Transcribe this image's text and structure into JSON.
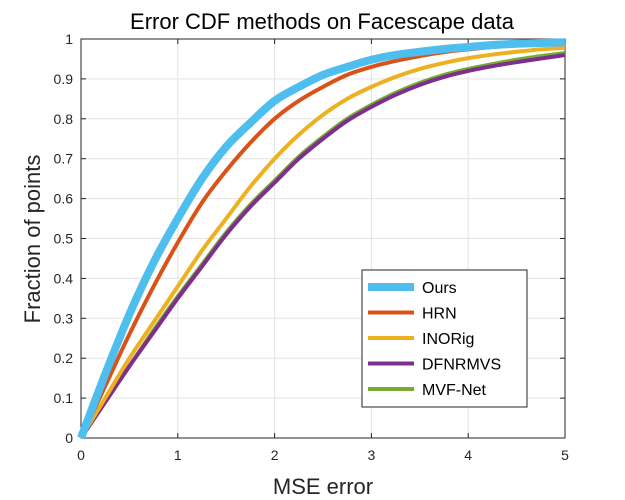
{
  "chart_data": {
    "type": "line",
    "title": "Error CDF methods on Facescape data",
    "xlabel": "MSE error",
    "ylabel": "Fraction of points",
    "xlim": [
      0,
      5
    ],
    "ylim": [
      0,
      1
    ],
    "xticks": [
      0,
      1,
      2,
      3,
      4,
      5
    ],
    "yticks": [
      0,
      0.1,
      0.2,
      0.3,
      0.4,
      0.5,
      0.6,
      0.7,
      0.8,
      0.9,
      1
    ],
    "grid": true,
    "legend_position": "bottom-right",
    "x": [
      0,
      0.25,
      0.5,
      0.75,
      1,
      1.25,
      1.5,
      1.75,
      2,
      2.25,
      2.5,
      2.75,
      3,
      3.25,
      3.5,
      3.75,
      4,
      4.25,
      4.5,
      4.75,
      5
    ],
    "series": [
      {
        "name": "Ours",
        "color": "#4DBEEE",
        "values": [
          0,
          0.16,
          0.31,
          0.44,
          0.55,
          0.65,
          0.73,
          0.79,
          0.845,
          0.88,
          0.91,
          0.93,
          0.948,
          0.96,
          0.968,
          0.975,
          0.98,
          0.985,
          0.988,
          0.99,
          0.992
        ]
      },
      {
        "name": "HRN",
        "color": "#D95319",
        "values": [
          0,
          0.13,
          0.26,
          0.38,
          0.49,
          0.59,
          0.67,
          0.74,
          0.8,
          0.845,
          0.88,
          0.91,
          0.93,
          0.945,
          0.957,
          0.967,
          0.974,
          0.98,
          0.984,
          0.987,
          0.99
        ]
      },
      {
        "name": "INORig",
        "color": "#EDB120",
        "values": [
          0,
          0.1,
          0.2,
          0.29,
          0.38,
          0.47,
          0.55,
          0.63,
          0.7,
          0.76,
          0.81,
          0.85,
          0.88,
          0.905,
          0.925,
          0.94,
          0.952,
          0.961,
          0.968,
          0.974,
          0.978
        ]
      },
      {
        "name": "DFNRMVS",
        "color": "#7E2F8E",
        "values": [
          0,
          0.09,
          0.18,
          0.265,
          0.35,
          0.43,
          0.51,
          0.58,
          0.64,
          0.7,
          0.75,
          0.795,
          0.83,
          0.86,
          0.885,
          0.905,
          0.92,
          0.932,
          0.942,
          0.951,
          0.96
        ]
      },
      {
        "name": "MVF-Net",
        "color": "#77AC30",
        "values": [
          0,
          0.09,
          0.18,
          0.27,
          0.355,
          0.435,
          0.515,
          0.585,
          0.645,
          0.705,
          0.755,
          0.8,
          0.835,
          0.865,
          0.89,
          0.91,
          0.925,
          0.937,
          0.948,
          0.957,
          0.965
        ]
      }
    ]
  }
}
